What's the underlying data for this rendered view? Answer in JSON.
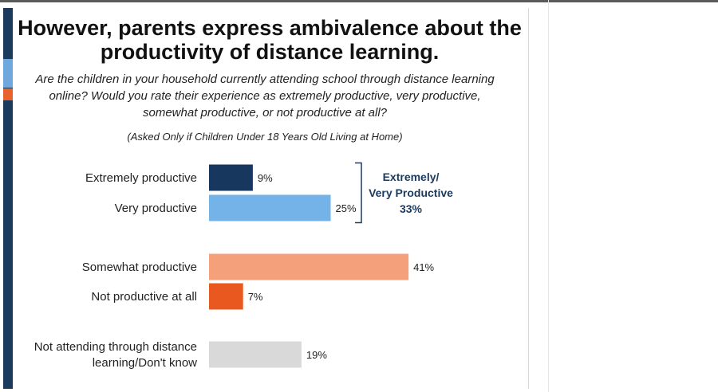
{
  "slide": {
    "title": "However, parents express ambivalence about the productivity of distance learning.",
    "question": "Are the children in your household currently attending school through distance learning online? Would you rate their experience as extremely productive, very productive, somewhat productive, or not productive at all?",
    "note": "(Asked Only if Children Under 18 Years Old Living at Home)"
  },
  "chart_data": {
    "type": "bar",
    "orientation": "horizontal",
    "title": "",
    "xlabel": "",
    "ylabel": "",
    "categories": [
      [
        "Extremely productive"
      ],
      [
        "Very productive"
      ],
      [
        "Somewhat productive"
      ],
      [
        "Not productive at all"
      ],
      [
        "Not attending through distance",
        "learning/Don't know"
      ]
    ],
    "values": [
      9,
      25,
      41,
      7,
      19
    ],
    "value_labels": [
      "9%",
      "25%",
      "41%",
      "7%",
      "19%"
    ],
    "colors": [
      "#17375e",
      "#74b3e8",
      "#f4a07a",
      "#e8581f",
      "#d9d9d9"
    ],
    "xlim": [
      0,
      50
    ],
    "grid": false,
    "legend": "none",
    "group_annotation": {
      "lines": [
        "Extremely/",
        "Very Productive",
        "33%"
      ],
      "applies_to": [
        "Extremely productive",
        "Very productive"
      ],
      "value": 33
    }
  }
}
